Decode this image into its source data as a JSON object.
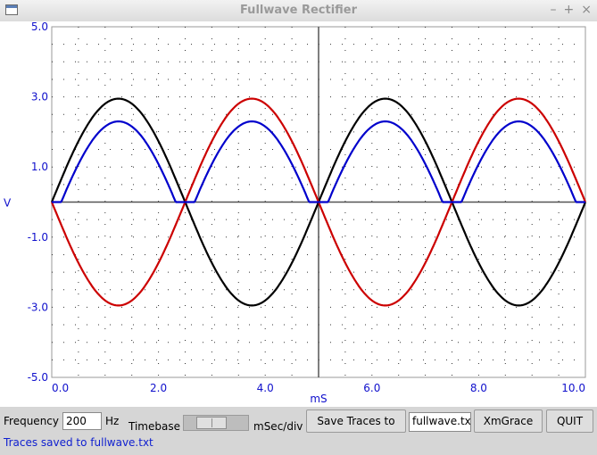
{
  "window": {
    "title": "Fullwave Rectifier",
    "controls": [
      "–",
      "+",
      "×"
    ]
  },
  "chart_data": {
    "type": "line",
    "xlabel": "mS",
    "ylabel": "V",
    "xlim": [
      0,
      10
    ],
    "ylim": [
      -5,
      5
    ],
    "xticks": [
      "0.0",
      "2.0",
      "4.0",
      "6.0",
      "8.0",
      "10.0"
    ],
    "yticks": [
      "5.0",
      "3.0",
      "1.0",
      "-1.0",
      "-3.0",
      "-5.0"
    ],
    "grid": true,
    "series": [
      {
        "color": "#000000",
        "function": "2.95*sin(2*pi*200*t)",
        "amplitude": 2.95,
        "frequency_hz": 200
      },
      {
        "color": "#cc0000",
        "function": "-2.95*sin(2*pi*200*t)",
        "amplitude": 2.95,
        "frequency_hz": 200
      },
      {
        "color": "#0000cc",
        "function": "max(0, |2.95*sin(2*pi*200*t)| - 0.65)",
        "amplitude": 2.3,
        "frequency_hz": 400
      }
    ]
  },
  "controls": {
    "frequency_label": "Frequency",
    "frequency_value": "200",
    "frequency_unit": "Hz",
    "timebase_label": "Timebase",
    "timebase_unit": "mSec/div",
    "save_button": "Save Traces to",
    "filename": "fullwave.txt",
    "xmgrace_button": "XmGrace",
    "quit_button": "QUIT"
  },
  "status": "Traces saved to fullwave.txt",
  "colors": {
    "axis_text": "#1010cc",
    "status_text": "#1020d0"
  }
}
